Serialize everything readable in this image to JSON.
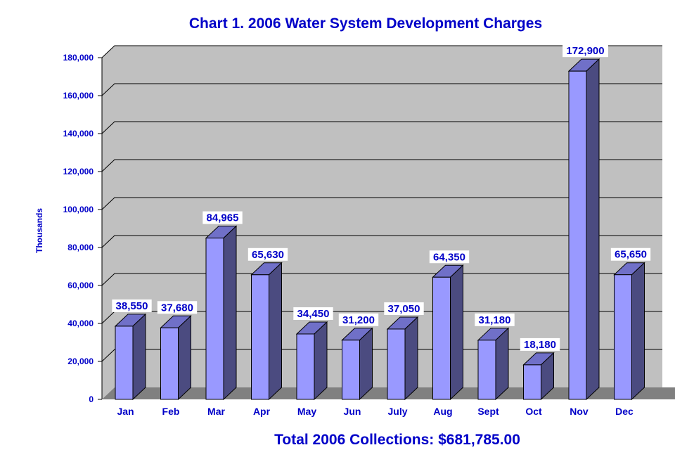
{
  "chart_data": {
    "type": "bar",
    "title": "Chart 1.  2006 Water System Development Charges",
    "ylabel": "Thousands",
    "xlabel": "",
    "footer": "Total 2006 Collections:  $681,785.00",
    "categories": [
      "Jan",
      "Feb",
      "Mar",
      "Apr",
      "May",
      "Jun",
      "July",
      "Aug",
      "Sept",
      "Oct",
      "Nov",
      "Dec"
    ],
    "values": [
      38550,
      37680,
      84965,
      65630,
      34450,
      31200,
      37050,
      64350,
      31180,
      18180,
      172900,
      65650
    ],
    "data_labels": [
      "38,550",
      "37,680",
      "84,965",
      "65,630",
      "34,450",
      "31,200",
      "37,050",
      "64,350",
      "31,180",
      "18,180",
      "172,900",
      "65,650"
    ],
    "yticks": [
      0,
      20000,
      40000,
      60000,
      80000,
      100000,
      120000,
      140000,
      160000,
      180000
    ],
    "ytick_labels": [
      "0",
      "20,000",
      "40,000",
      "60,000",
      "80,000",
      "100,000",
      "120,000",
      "140,000",
      "160,000",
      "180,000"
    ],
    "ylim": [
      0,
      180000
    ],
    "grid": true,
    "legend": "none",
    "colors": {
      "text": "#0000c8",
      "bar_front": "#9999ff",
      "bar_side": "#4b4b80",
      "bar_top": "#7070c8",
      "wall": "#c0c0c0",
      "floor": "#808080"
    }
  }
}
